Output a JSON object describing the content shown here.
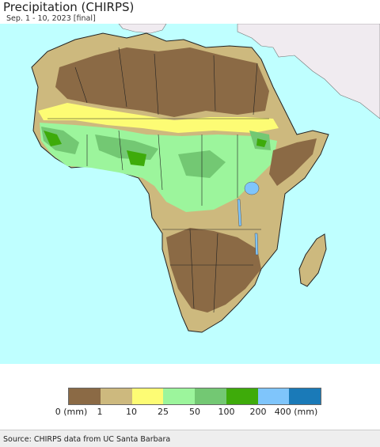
{
  "header": {
    "title": "Precipitation (CHIRPS)",
    "subtitle": "Sep. 1 - 10, 2023 [final]"
  },
  "colors": {
    "ocean": "#bfffff",
    "outside_region": "#f0ebf0",
    "bin_0_1": "#8b6a45",
    "bin_1_10": "#cdb97e",
    "bin_10_25": "#fdfc74",
    "bin_25_50": "#9cf59c",
    "bin_50_100": "#73c873",
    "bin_100_200": "#3eab0a",
    "bin_200_400": "#7fc5fb",
    "bin_400_plus": "#1a7ab8"
  },
  "legend": {
    "swatches": [
      "#8b6a45",
      "#cdb97e",
      "#fdfc74",
      "#9cf59c",
      "#73c873",
      "#3eab0a",
      "#7fc5fb",
      "#1a7ab8"
    ],
    "labels": [
      "0 (mm)",
      "1",
      "10",
      "25",
      "50",
      "100",
      "200",
      "400 (mm)"
    ]
  },
  "footer": {
    "source": "Source: CHIRPS data from UC Santa Barbara"
  }
}
